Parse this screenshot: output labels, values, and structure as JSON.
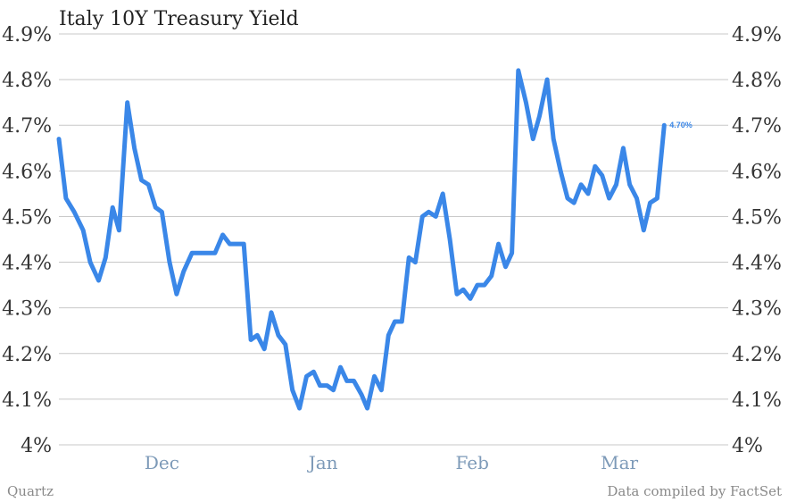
{
  "colors": {
    "line": "#3a87e8",
    "grid": "#c8c8c8",
    "axis_text": "#333333",
    "month_text": "#7d9ab8",
    "footer_text": "#8a8a8a",
    "title_text": "#222222"
  },
  "footer": {
    "left": "Quartz",
    "right": "Data compiled by FactSet"
  },
  "chart_data": {
    "type": "line",
    "title": "Italy 10Y Treasury Yield",
    "xlabel": "",
    "ylabel": "",
    "ylim": [
      4.0,
      4.9
    ],
    "y_ticks": [
      {
        "value": 4.0,
        "label": "4%"
      },
      {
        "value": 4.1,
        "label": "4.1%"
      },
      {
        "value": 4.2,
        "label": "4.2%"
      },
      {
        "value": 4.3,
        "label": "4.3%"
      },
      {
        "value": 4.4,
        "label": "4.4%"
      },
      {
        "value": 4.5,
        "label": "4.5%"
      },
      {
        "value": 4.6,
        "label": "4.6%"
      },
      {
        "value": 4.7,
        "label": "4.7%"
      },
      {
        "value": 4.8,
        "label": "4.8%"
      },
      {
        "value": 4.9,
        "label": "4.9%"
      }
    ],
    "x_range": [
      0,
      100
    ],
    "x_ticks": [
      {
        "value": 16.1,
        "label": "Dec"
      },
      {
        "value": 41.3,
        "label": "Jan"
      },
      {
        "value": 64.6,
        "label": "Feb"
      },
      {
        "value": 87.6,
        "label": "Mar"
      }
    ],
    "grid": true,
    "end_label": "4.70%",
    "series": [
      {
        "values": [
          [
            0,
            4.67
          ],
          [
            1.1,
            4.54
          ],
          [
            2.4,
            4.51
          ],
          [
            3.8,
            4.47
          ],
          [
            4.9,
            4.4
          ],
          [
            6.2,
            4.36
          ],
          [
            7.3,
            4.41
          ],
          [
            8.4,
            4.52
          ],
          [
            9.4,
            4.47
          ],
          [
            10.7,
            4.75
          ],
          [
            11.8,
            4.65
          ],
          [
            12.9,
            4.58
          ],
          [
            14.0,
            4.57
          ],
          [
            15.1,
            4.52
          ],
          [
            16.1,
            4.51
          ],
          [
            17.3,
            4.4
          ],
          [
            18.4,
            4.33
          ],
          [
            19.5,
            4.38
          ],
          [
            20.8,
            4.42
          ],
          [
            22.1,
            4.42
          ],
          [
            23.3,
            4.42
          ],
          [
            24.4,
            4.42
          ],
          [
            25.6,
            4.46
          ],
          [
            26.7,
            4.44
          ],
          [
            27.8,
            4.44
          ],
          [
            28.9,
            4.44
          ],
          [
            30.0,
            4.23
          ],
          [
            31.0,
            4.24
          ],
          [
            32.1,
            4.21
          ],
          [
            33.2,
            4.29
          ],
          [
            34.3,
            4.24
          ],
          [
            35.4,
            4.22
          ],
          [
            36.5,
            4.12
          ],
          [
            37.6,
            4.08
          ],
          [
            38.7,
            4.15
          ],
          [
            39.8,
            4.16
          ],
          [
            40.8,
            4.13
          ],
          [
            41.9,
            4.13
          ],
          [
            42.9,
            4.12
          ],
          [
            44.0,
            4.17
          ],
          [
            45.0,
            4.14
          ],
          [
            46.1,
            4.14
          ],
          [
            47.3,
            4.11
          ],
          [
            48.2,
            4.08
          ],
          [
            49.3,
            4.15
          ],
          [
            50.4,
            4.12
          ],
          [
            51.5,
            4.24
          ],
          [
            52.5,
            4.27
          ],
          [
            53.6,
            4.27
          ],
          [
            54.7,
            4.41
          ],
          [
            55.7,
            4.4
          ],
          [
            56.8,
            4.5
          ],
          [
            57.8,
            4.51
          ],
          [
            58.9,
            4.5
          ],
          [
            60.0,
            4.55
          ],
          [
            61.1,
            4.45
          ],
          [
            62.2,
            4.33
          ],
          [
            63.2,
            4.34
          ],
          [
            64.3,
            4.32
          ],
          [
            65.4,
            4.35
          ],
          [
            66.5,
            4.35
          ],
          [
            67.6,
            4.37
          ],
          [
            68.7,
            4.44
          ],
          [
            69.8,
            4.39
          ],
          [
            70.8,
            4.42
          ],
          [
            71.8,
            4.82
          ],
          [
            73.0,
            4.75
          ],
          [
            74.1,
            4.67
          ],
          [
            75.1,
            4.72
          ],
          [
            76.3,
            4.8
          ],
          [
            77.3,
            4.67
          ],
          [
            78.4,
            4.6
          ],
          [
            79.5,
            4.54
          ],
          [
            80.5,
            4.53
          ],
          [
            81.6,
            4.57
          ],
          [
            82.7,
            4.55
          ],
          [
            83.8,
            4.61
          ],
          [
            84.9,
            4.59
          ],
          [
            86.0,
            4.54
          ],
          [
            87.1,
            4.57
          ],
          [
            88.2,
            4.65
          ],
          [
            89.2,
            4.57
          ],
          [
            90.3,
            4.54
          ],
          [
            91.4,
            4.47
          ],
          [
            92.4,
            4.53
          ],
          [
            93.5,
            4.54
          ],
          [
            94.6,
            4.7
          ]
        ]
      }
    ]
  }
}
